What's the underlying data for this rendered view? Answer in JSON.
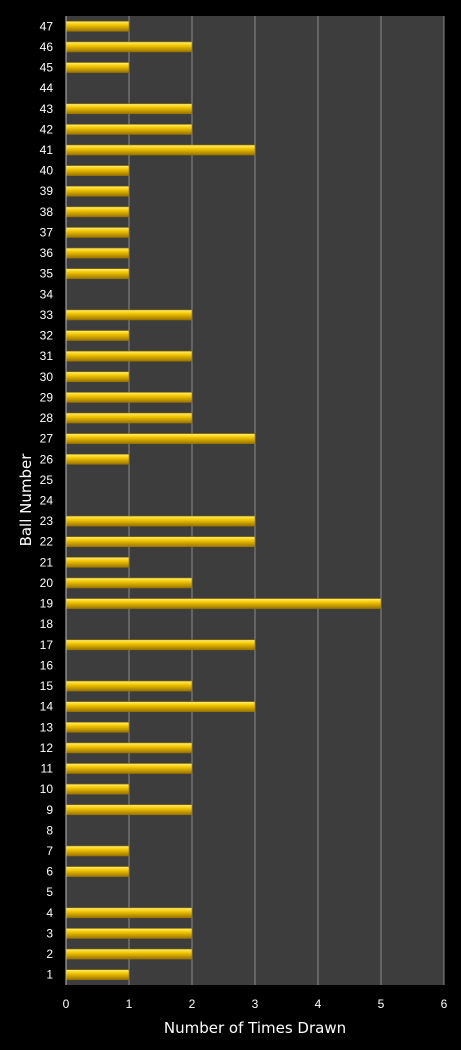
{
  "chart_data": {
    "type": "bar",
    "orientation": "horizontal",
    "title": "",
    "xlabel": "Number of Times Drawn",
    "ylabel": "Ball Number",
    "xlim": [
      0,
      6
    ],
    "xticks": [
      "0",
      "1",
      "2",
      "3",
      "4",
      "5",
      "6"
    ],
    "grid": "vertical",
    "legend": "none",
    "colors": {
      "background": "#000000",
      "plot_area": "#3d3d3d",
      "bar": "#f5c800",
      "bar_highlight": "#fff27a",
      "bar_shadow": "#9a7400",
      "gridline": "#8a8a8a"
    },
    "categories": [
      "1",
      "2",
      "3",
      "4",
      "5",
      "6",
      "7",
      "8",
      "9",
      "10",
      "11",
      "12",
      "13",
      "14",
      "15",
      "16",
      "17",
      "18",
      "19",
      "20",
      "21",
      "22",
      "23",
      "24",
      "25",
      "26",
      "27",
      "28",
      "29",
      "30",
      "31",
      "32",
      "33",
      "34",
      "35",
      "36",
      "37",
      "38",
      "39",
      "40",
      "41",
      "42",
      "43",
      "44",
      "45",
      "46",
      "47"
    ],
    "values": [
      1,
      2,
      2,
      2,
      0,
      1,
      1,
      0,
      2,
      1,
      2,
      2,
      1,
      3,
      2,
      0,
      3,
      0,
      5,
      2,
      1,
      3,
      3,
      0,
      0,
      1,
      3,
      2,
      2,
      1,
      2,
      1,
      2,
      0,
      1,
      1,
      1,
      1,
      1,
      1,
      3,
      2,
      2,
      0,
      1,
      2,
      1
    ]
  }
}
